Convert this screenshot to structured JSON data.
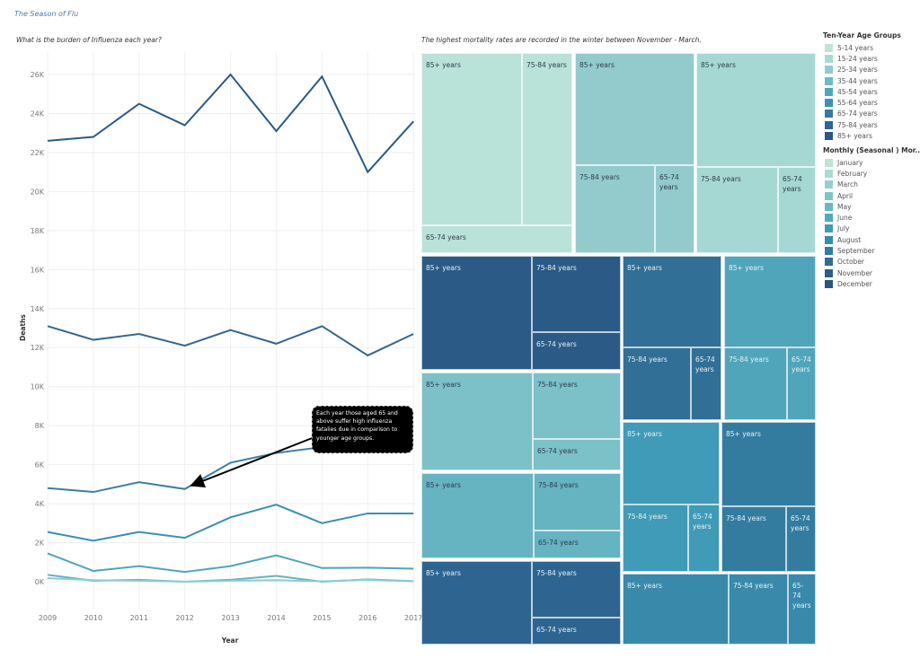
{
  "dashboard_title": "The Season of Flu",
  "line_chart": {
    "subtitle": "What is the burden of Influenza each year?",
    "annotation": "Each year those aged 65 and above suffer high influenza fatalies due in comparison to younger age groups."
  },
  "treemap": {
    "subtitle": "The highest mortality rates are  recorded in the winter between November - March.",
    "blocks": [
      {
        "month": "January",
        "color": "#b9e2d8",
        "cells": [
          "85+ years",
          "75-84 years",
          "65-74 years"
        ]
      },
      {
        "month": "March",
        "color": "#93cbcd",
        "cells": [
          "85+ years",
          "75-84 years",
          "65-74 years"
        ]
      },
      {
        "month": "February",
        "color": "#a6d8d3",
        "cells": [
          "85+ years",
          "75-84 years",
          "65-74 years"
        ]
      },
      {
        "month": "December",
        "color": "#2b5a86",
        "cells": [
          "85+ years",
          "75-84 years",
          "65-74 years"
        ]
      },
      {
        "month": "April",
        "color": "#7cc0c8",
        "cells": [
          "85+ years",
          "75-84 years",
          "65-74 years"
        ]
      },
      {
        "month": "May",
        "color": "#66b3c2",
        "cells": [
          "85+ years",
          "75-84 years",
          "65-74 years"
        ]
      },
      {
        "month": "November",
        "color": "#2e6490",
        "cells": [
          "85+ years",
          "75-84 years",
          "65-74 years"
        ]
      },
      {
        "month": "October",
        "color": "#316f96",
        "cells": [
          "85+ years",
          "75-84 years",
          "65-74 years"
        ]
      },
      {
        "month": "June",
        "color": "#50a5bb",
        "cells": [
          "85+ years",
          "75-84 years",
          "65-74 years"
        ]
      },
      {
        "month": "July",
        "color": "#3f9bb7",
        "cells": [
          "85+ years",
          "75-84 years",
          "65-74 years"
        ]
      },
      {
        "month": "September",
        "color": "#337ca0",
        "cells": [
          "85+ years",
          "75-84 years",
          "65-74 years"
        ]
      },
      {
        "month": "August",
        "color": "#3889aa",
        "cells": [
          "85+ years",
          "75-84 years",
          "65-74 years"
        ]
      }
    ]
  },
  "legend_age": {
    "title": "Ten-Year Age Groups",
    "items": [
      {
        "label": "5-14 years",
        "color": "#bfe3d9"
      },
      {
        "label": "15-24 years",
        "color": "#a9d9d3"
      },
      {
        "label": "25-34 years",
        "color": "#8ecdcf"
      },
      {
        "label": "35-44 years",
        "color": "#6dbcc8"
      },
      {
        "label": "45-54 years",
        "color": "#4fa7be"
      },
      {
        "label": "55-64 years",
        "color": "#3b92b3"
      },
      {
        "label": "65-74 years",
        "color": "#347aa1"
      },
      {
        "label": "75-84 years",
        "color": "#2f6592"
      },
      {
        "label": "85+ years",
        "color": "#2a5783"
      }
    ]
  },
  "legend_month": {
    "title": "Monthly (Seasonal ) Mor...",
    "items": [
      {
        "label": "January",
        "color": "#bfe3d9"
      },
      {
        "label": "February",
        "color": "#acdad4"
      },
      {
        "label": "March",
        "color": "#96cfd0"
      },
      {
        "label": "April",
        "color": "#80c3cb"
      },
      {
        "label": "May",
        "color": "#68b6c4"
      },
      {
        "label": "June",
        "color": "#52a9bd"
      },
      {
        "label": "July",
        "color": "#409bb5"
      },
      {
        "label": "August",
        "color": "#378bab"
      },
      {
        "label": "September",
        "color": "#337b9f"
      },
      {
        "label": "October",
        "color": "#306c94"
      },
      {
        "label": "November",
        "color": "#2d5f8a"
      },
      {
        "label": "December",
        "color": "#2a5482"
      }
    ]
  },
  "chart_data": {
    "type": "line",
    "title": "What is the burden of Influenza each year?",
    "xlabel": "Year",
    "ylabel": "Deaths",
    "x": [
      2009,
      2010,
      2011,
      2012,
      2013,
      2014,
      2015,
      2016,
      2017
    ],
    "ylim": [
      -1200,
      27500
    ],
    "yticks": [
      "0K",
      "2K",
      "4K",
      "6K",
      "8K",
      "10K",
      "12K",
      "14K",
      "16K",
      "18K",
      "20K",
      "22K",
      "24K",
      "26K"
    ],
    "grid": true,
    "series": [
      {
        "color": "#2b5a86",
        "values": [
          22600,
          22800,
          24500,
          23400,
          26000,
          23100,
          25900,
          21000,
          23600
        ]
      },
      {
        "color": "#35668f",
        "values": [
          13100,
          12400,
          12700,
          12100,
          12900,
          12200,
          13100,
          11600,
          12700
        ]
      },
      {
        "color": "#3d7ea3",
        "values": [
          4800,
          4600,
          5100,
          4750,
          6100,
          6600,
          6900,
          7100,
          7300
        ]
      },
      {
        "color": "#3a8fb0",
        "values": [
          2550,
          2100,
          2550,
          2250,
          3300,
          3950,
          3000,
          3500,
          3500
        ]
      },
      {
        "color": "#4fa4bb",
        "values": [
          1450,
          550,
          800,
          500,
          800,
          1350,
          700,
          720,
          670
        ]
      },
      {
        "color": "#66b3c2",
        "values": [
          350,
          50,
          100,
          0,
          100,
          300,
          0,
          120,
          30
        ]
      },
      {
        "color": "#8ccdd0",
        "values": [
          180,
          80,
          50,
          0,
          50,
          80,
          20,
          100,
          20
        ]
      }
    ]
  }
}
